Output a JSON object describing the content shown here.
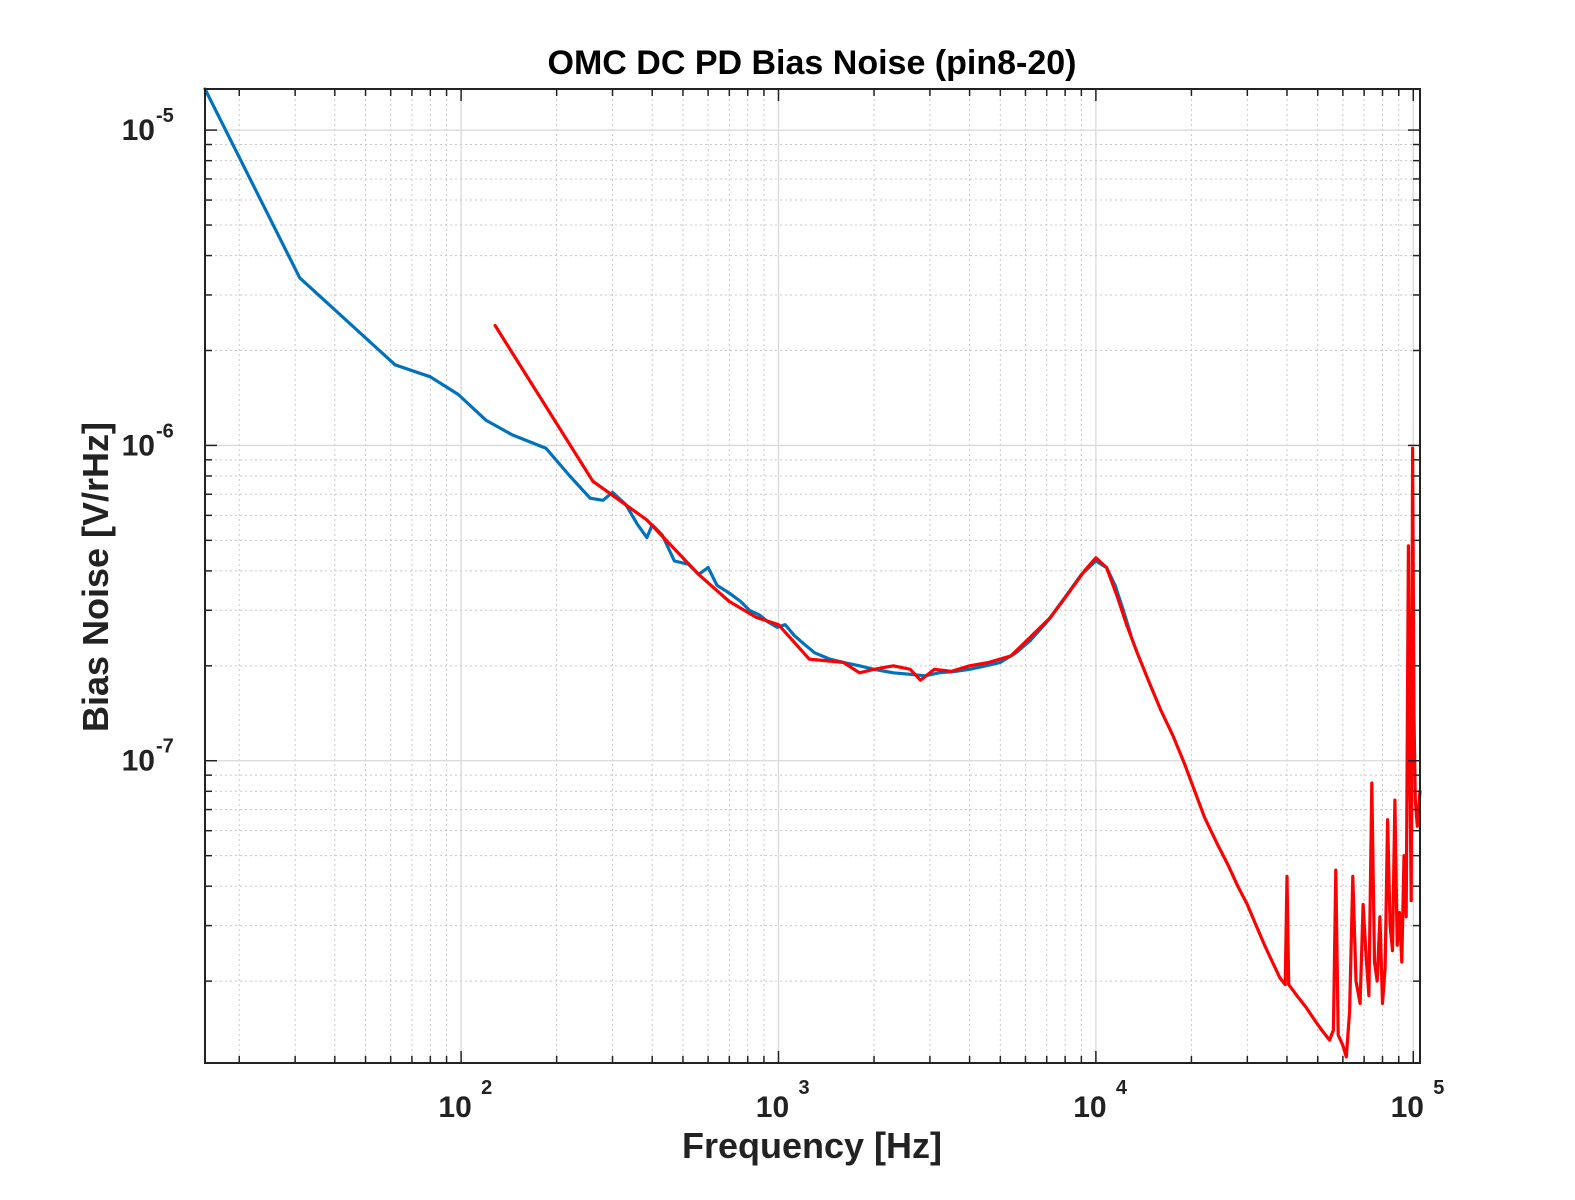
{
  "chart_data": {
    "type": "line",
    "title": "OMC DC PD Bias Noise (pin8-20)",
    "xlabel": "Frequency [Hz]",
    "ylabel": "Bias Noise [V/rHz]",
    "xscale": "log",
    "yscale": "log",
    "xlim": [
      15.6,
      105000
    ],
    "ylim": [
      1.1e-08,
      1.35e-05
    ],
    "grid": "on (major and minor)",
    "x_ticks": [
      {
        "base": "10",
        "exp": "2",
        "value": 100
      },
      {
        "base": "10",
        "exp": "3",
        "value": 1000
      },
      {
        "base": "10",
        "exp": "4",
        "value": 10000
      },
      {
        "base": "10",
        "exp": "5",
        "value": 100000
      }
    ],
    "y_ticks": [
      {
        "base": "10",
        "exp": "-5",
        "value": 1e-05
      },
      {
        "base": "10",
        "exp": "-6",
        "value": 1e-06
      },
      {
        "base": "10",
        "exp": "-7",
        "value": 1e-07
      }
    ],
    "series": [
      {
        "color": "#0072BD",
        "points": [
          [
            15.6,
            1.35e-05
          ],
          [
            31,
            3.4e-06
          ],
          [
            62,
            1.8e-06
          ],
          [
            80,
            1.65e-06
          ],
          [
            98,
            1.45e-06
          ],
          [
            120,
            1.2e-06
          ],
          [
            145,
            1.08e-06
          ],
          [
            185,
            9.8e-07
          ],
          [
            220,
            8e-07
          ],
          [
            255,
            6.8e-07
          ],
          [
            280,
            6.7e-07
          ],
          [
            300,
            7.1e-07
          ],
          [
            330,
            6.5e-07
          ],
          [
            360,
            5.6e-07
          ],
          [
            385,
            5.1e-07
          ],
          [
            400,
            5.6e-07
          ],
          [
            430,
            5.2e-07
          ],
          [
            470,
            4.3e-07
          ],
          [
            520,
            4.2e-07
          ],
          [
            560,
            3.9e-07
          ],
          [
            600,
            4.1e-07
          ],
          [
            640,
            3.6e-07
          ],
          [
            700,
            3.4e-07
          ],
          [
            760,
            3.2e-07
          ],
          [
            810,
            3e-07
          ],
          [
            870,
            2.9e-07
          ],
          [
            930,
            2.75e-07
          ],
          [
            990,
            2.65e-07
          ],
          [
            1050,
            2.7e-07
          ],
          [
            1120,
            2.5e-07
          ],
          [
            1200,
            2.35e-07
          ],
          [
            1300,
            2.2e-07
          ],
          [
            1450,
            2.1e-07
          ],
          [
            1600,
            2.05e-07
          ],
          [
            1800,
            2e-07
          ],
          [
            2000,
            1.95e-07
          ],
          [
            2300,
            1.9e-07
          ],
          [
            2600,
            1.88e-07
          ],
          [
            2900,
            1.86e-07
          ],
          [
            3200,
            1.9e-07
          ],
          [
            3600,
            1.92e-07
          ],
          [
            4000,
            1.95e-07
          ],
          [
            4500,
            2e-07
          ],
          [
            5000,
            2.05e-07
          ],
          [
            5600,
            2.2e-07
          ],
          [
            6200,
            2.4e-07
          ],
          [
            7000,
            2.75e-07
          ],
          [
            8000,
            3.3e-07
          ],
          [
            9000,
            3.9e-07
          ],
          [
            10000,
            4.3e-07
          ],
          [
            10800,
            4.1e-07
          ],
          [
            11500,
            3.6e-07
          ],
          [
            12200,
            3e-07
          ],
          [
            12900,
            2.5e-07
          ]
        ]
      },
      {
        "color": "#FF0000",
        "points": [
          [
            128,
            2.4e-06
          ],
          [
            260,
            7.7e-07
          ],
          [
            385,
            5.8e-07
          ],
          [
            560,
            3.9e-07
          ],
          [
            700,
            3.2e-07
          ],
          [
            850,
            2.85e-07
          ],
          [
            1000,
            2.7e-07
          ],
          [
            1250,
            2.1e-07
          ],
          [
            1600,
            2.05e-07
          ],
          [
            1800,
            1.9e-07
          ],
          [
            2000,
            1.95e-07
          ],
          [
            2300,
            2e-07
          ],
          [
            2600,
            1.95e-07
          ],
          [
            2800,
            1.8e-07
          ],
          [
            3100,
            1.95e-07
          ],
          [
            3500,
            1.92e-07
          ],
          [
            4000,
            2e-07
          ],
          [
            4600,
            2.05e-07
          ],
          [
            5400,
            2.15e-07
          ],
          [
            6300,
            2.5e-07
          ],
          [
            7200,
            2.85e-07
          ],
          [
            8200,
            3.4e-07
          ],
          [
            9200,
            4e-07
          ],
          [
            10000,
            4.4e-07
          ],
          [
            10800,
            4.1e-07
          ],
          [
            11700,
            3.3e-07
          ],
          [
            12500,
            2.7e-07
          ],
          [
            13500,
            2.2e-07
          ],
          [
            14800,
            1.75e-07
          ],
          [
            16000,
            1.45e-07
          ],
          [
            17500,
            1.2e-07
          ],
          [
            19000,
            9.8e-08
          ],
          [
            20500,
            8e-08
          ],
          [
            22000,
            6.6e-08
          ],
          [
            24000,
            5.5e-08
          ],
          [
            26000,
            4.7e-08
          ],
          [
            28000,
            4e-08
          ],
          [
            30000,
            3.5e-08
          ],
          [
            32000,
            3e-08
          ],
          [
            34000,
            2.6e-08
          ],
          [
            36000,
            2.3e-08
          ],
          [
            38000,
            2.05e-08
          ],
          [
            39500,
            1.95e-08
          ],
          [
            40000,
            4.3e-08
          ],
          [
            40500,
            1.95e-08
          ],
          [
            43000,
            1.8e-08
          ],
          [
            46000,
            1.65e-08
          ],
          [
            49000,
            1.5e-08
          ],
          [
            52000,
            1.38e-08
          ],
          [
            54500,
            1.3e-08
          ],
          [
            56000,
            1.4e-08
          ],
          [
            57000,
            4.5e-08
          ],
          [
            58000,
            1.35e-08
          ],
          [
            60000,
            1.25e-08
          ],
          [
            61500,
            1.15e-08
          ],
          [
            63000,
            1.6e-08
          ],
          [
            64500,
            4.3e-08
          ],
          [
            66000,
            2e-08
          ],
          [
            68000,
            1.7e-08
          ],
          [
            69500,
            3.5e-08
          ],
          [
            71000,
            2.4e-08
          ],
          [
            72500,
            1.8e-08
          ],
          [
            74000,
            8.5e-08
          ],
          [
            75500,
            2.3e-08
          ],
          [
            77000,
            2e-08
          ],
          [
            78500,
            3.2e-08
          ],
          [
            80000,
            1.7e-08
          ],
          [
            81500,
            2.2e-08
          ],
          [
            83000,
            6.5e-08
          ],
          [
            84500,
            3e-08
          ],
          [
            86000,
            2.5e-08
          ],
          [
            87500,
            7.5e-08
          ],
          [
            89000,
            2.6e-08
          ],
          [
            90500,
            3.3e-08
          ],
          [
            92000,
            2.3e-08
          ],
          [
            93500,
            5e-08
          ],
          [
            95000,
            3.2e-08
          ],
          [
            96500,
            4.8e-07
          ],
          [
            97500,
            1e-07
          ],
          [
            98500,
            3.6e-08
          ],
          [
            99500,
            9.8e-07
          ],
          [
            100500,
            1.4e-07
          ],
          [
            101500,
            7.5e-08
          ],
          [
            103000,
            6.2e-08
          ],
          [
            105000,
            8e-08
          ]
        ]
      }
    ]
  }
}
